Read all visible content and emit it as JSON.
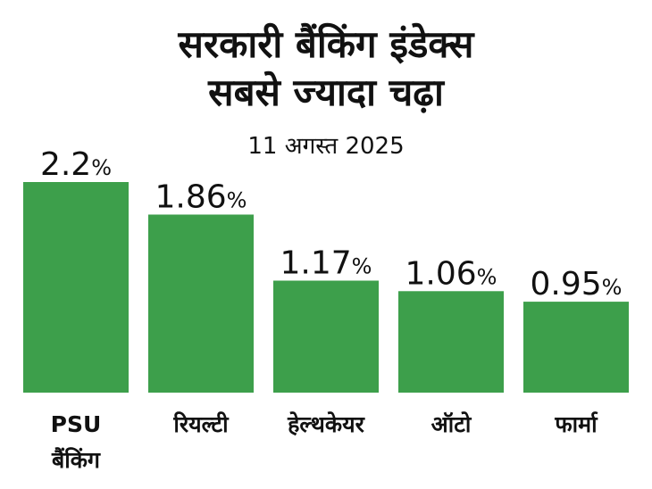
{
  "title": {
    "line1": "सरकारी बैंकिंग इंडेक्स",
    "line2": "सबसे ज्यादा चढ़ा"
  },
  "date": "11 अगस्त 2025",
  "colors": {
    "bar": "#3d9f4b",
    "text": "#111111"
  },
  "chart_data": {
    "type": "bar",
    "title": "सरकारी बैंकिंग इंडेक्स सबसे ज्यादा चढ़ा",
    "subtitle": "11 अगस्त 2025",
    "categories": [
      [
        "PSU",
        "बैंकिंग"
      ],
      [
        "रियल्टी"
      ],
      [
        "हेल्थकेयर"
      ],
      [
        "ऑटो"
      ],
      [
        "फार्मा"
      ]
    ],
    "values": [
      2.2,
      1.86,
      1.17,
      1.06,
      0.95
    ],
    "value_labels": [
      "2.2",
      "1.86",
      "1.17",
      "1.06",
      "0.95"
    ],
    "value_suffix": "%",
    "ylim": [
      0,
      2.2
    ],
    "grid": false,
    "legend": "none"
  }
}
